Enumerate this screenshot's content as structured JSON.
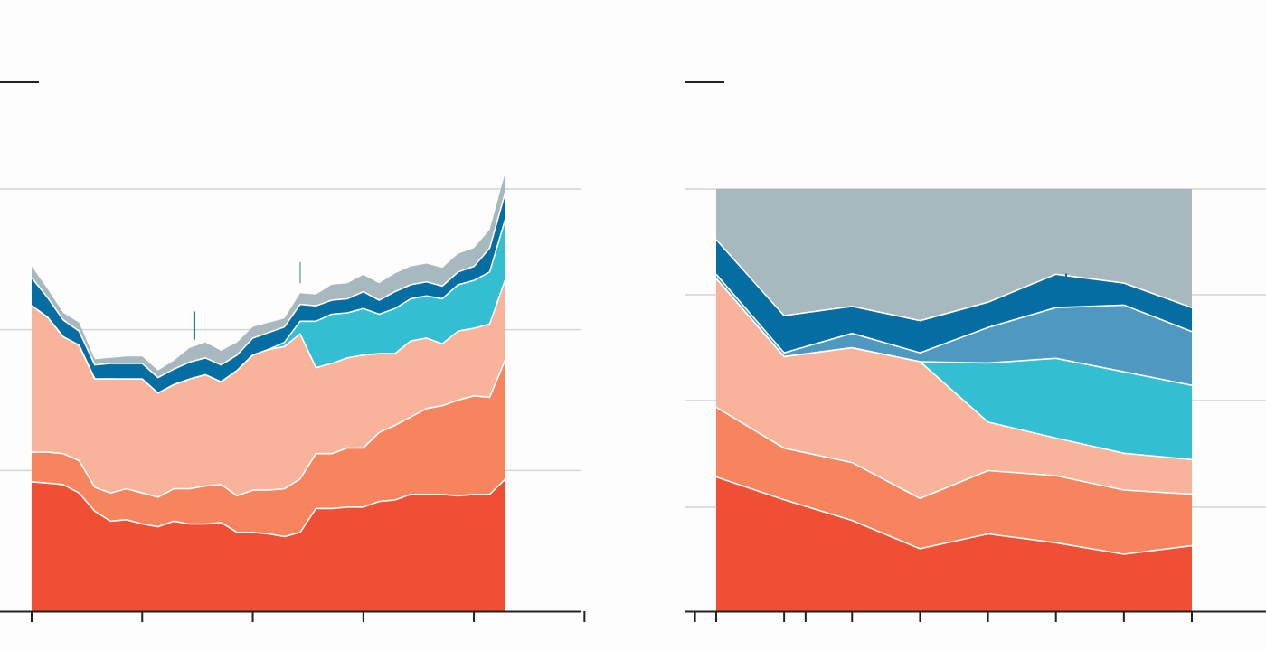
{
  "colors": {
    "red": "#ef5035",
    "coral": "#f5845f",
    "peach": "#f9b39b",
    "cyan": "#33bfd1",
    "steel": "#4f98c0",
    "navy": "#046ea3",
    "gray": "#a8b8bf",
    "grid": "#d4d4d4",
    "axis": "#222222"
  },
  "chart_data": [
    {
      "type": "area",
      "stacked": true,
      "title": "",
      "xlabel": "",
      "ylabel": "",
      "grid": true,
      "legend": "none",
      "ylim": [
        0,
        3
      ],
      "x_ticks": [
        0,
        7,
        14,
        21,
        28,
        35,
        42,
        49
      ],
      "x": [
        0,
        1,
        2,
        3,
        4,
        5,
        6,
        7,
        8,
        9,
        10,
        11,
        12,
        13,
        14,
        15,
        16,
        17,
        18,
        19,
        20,
        21,
        22,
        23,
        24,
        25,
        26,
        27,
        28,
        29,
        30
      ],
      "series": [
        {
          "color": "red",
          "values": [
            0.92,
            0.91,
            0.9,
            0.84,
            0.71,
            0.64,
            0.65,
            0.62,
            0.6,
            0.64,
            0.62,
            0.62,
            0.63,
            0.56,
            0.56,
            0.55,
            0.53,
            0.56,
            0.73,
            0.73,
            0.74,
            0.74,
            0.78,
            0.79,
            0.83,
            0.83,
            0.83,
            0.82,
            0.83,
            0.83,
            0.94
          ]
        },
        {
          "color": "coral",
          "values": [
            0.21,
            0.22,
            0.22,
            0.23,
            0.17,
            0.2,
            0.22,
            0.22,
            0.21,
            0.23,
            0.25,
            0.27,
            0.27,
            0.26,
            0.3,
            0.31,
            0.34,
            0.38,
            0.39,
            0.39,
            0.42,
            0.42,
            0.49,
            0.53,
            0.55,
            0.61,
            0.63,
            0.68,
            0.7,
            0.69,
            0.85
          ]
        },
        {
          "color": "peach",
          "values": [
            1.04,
            0.96,
            0.83,
            0.82,
            0.77,
            0.81,
            0.78,
            0.81,
            0.74,
            0.74,
            0.78,
            0.79,
            0.73,
            0.89,
            0.96,
            1.0,
            1.01,
            1.03,
            0.61,
            0.64,
            0.64,
            0.66,
            0.56,
            0.51,
            0.54,
            0.5,
            0.44,
            0.49,
            0.48,
            0.52,
            0.57
          ]
        },
        {
          "color": "cyan",
          "values": [
            0,
            0,
            0,
            0,
            0,
            0,
            0,
            0,
            0,
            0,
            0,
            0,
            0,
            0,
            0,
            0,
            0.03,
            0.09,
            0.33,
            0.35,
            0.32,
            0.33,
            0.28,
            0.32,
            0.3,
            0.3,
            0.32,
            0.33,
            0.34,
            0.37,
            0.43
          ]
        },
        {
          "color": "navy",
          "values": [
            0.2,
            0.14,
            0.12,
            0.1,
            0.1,
            0.11,
            0.11,
            0.11,
            0.11,
            0.11,
            0.12,
            0.12,
            0.12,
            0.11,
            0.12,
            0.12,
            0.11,
            0.12,
            0.11,
            0.1,
            0.1,
            0.12,
            0.1,
            0.12,
            0.1,
            0.1,
            0.09,
            0.09,
            0.1,
            0.17,
            0.19
          ]
        },
        {
          "color": "gray",
          "values": [
            0.08,
            0.06,
            0.05,
            0.06,
            0.04,
            0.04,
            0.05,
            0.05,
            0.05,
            0.06,
            0.1,
            0.11,
            0.1,
            0.09,
            0.08,
            0.07,
            0.06,
            0.08,
            0.08,
            0.11,
            0.11,
            0.12,
            0.12,
            0.13,
            0.13,
            0.13,
            0.13,
            0.13,
            0.13,
            0.13,
            0.14
          ]
        }
      ],
      "markers": [
        {
          "x": 10.3,
          "from": 1.93,
          "to": 2.13,
          "color": "navy"
        },
        {
          "x": 17.0,
          "from": 2.33,
          "to": 2.48,
          "color": "gray"
        }
      ]
    },
    {
      "type": "area",
      "stacked": true,
      "title": "",
      "xlabel": "",
      "ylabel": "",
      "grid": true,
      "legend": "none",
      "ylim": [
        0,
        1
      ],
      "x_ticks": [
        0,
        1,
        2,
        3,
        4,
        5,
        6,
        7
      ],
      "x": [
        0,
        1,
        2,
        3,
        4,
        5,
        6,
        7
      ],
      "series": [
        {
          "color": "red",
          "values": [
            0.318,
            0.264,
            0.215,
            0.148,
            0.183,
            0.162,
            0.135,
            0.155
          ]
        },
        {
          "color": "coral",
          "values": [
            0.165,
            0.122,
            0.137,
            0.119,
            0.15,
            0.159,
            0.152,
            0.122
          ]
        },
        {
          "color": "peach",
          "values": [
            0.305,
            0.217,
            0.272,
            0.324,
            0.115,
            0.089,
            0.087,
            0.082
          ]
        },
        {
          "color": "cyan",
          "values": [
            0,
            0,
            0,
            0,
            0.14,
            0.189,
            0.193,
            0.176
          ]
        },
        {
          "color": "steel",
          "values": [
            0.01,
            0.009,
            0.034,
            0.021,
            0.084,
            0.12,
            0.158,
            0.127
          ]
        },
        {
          "color": "navy",
          "values": [
            0.082,
            0.088,
            0.064,
            0.076,
            0.06,
            0.079,
            0.052,
            0.057
          ]
        },
        {
          "color": "gray",
          "values": [
            0.12,
            0.3,
            0.278,
            0.312,
            0.268,
            0.202,
            0.223,
            0.281
          ]
        }
      ],
      "markers": [
        {
          "x": 5.15,
          "from": 0.765,
          "to": 0.8,
          "color": "navy"
        }
      ]
    }
  ]
}
